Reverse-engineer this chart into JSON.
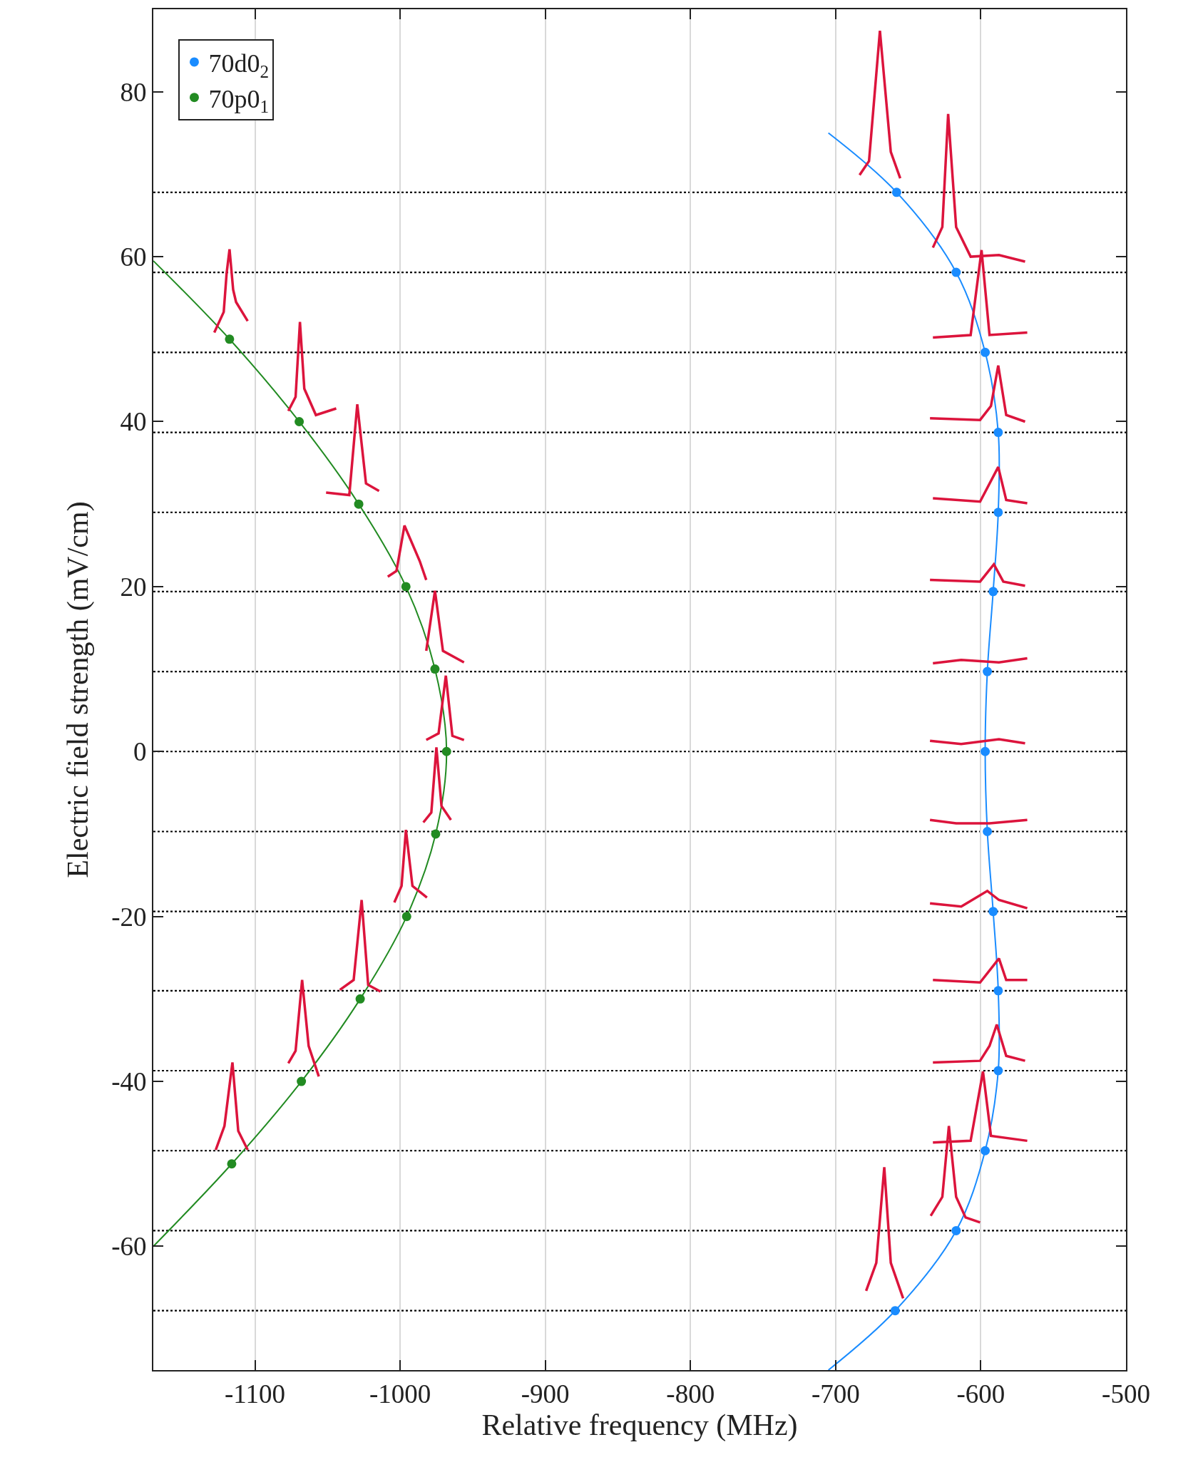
{
  "chart_data": {
    "type": "scatter",
    "xlabel": "Relative frequency (MHz)",
    "ylabel": "Electric field strength (mV/cm)",
    "xlim": [
      -1170,
      -500
    ],
    "xticks": [
      -1100,
      -1000,
      -900,
      -800,
      -700,
      -600,
      -500
    ],
    "ylim": [
      -75,
      90
    ],
    "yticks": [
      -60,
      -40,
      -20,
      0,
      20,
      40,
      60,
      80
    ],
    "grid": "x",
    "legend": "top left",
    "ref_lines": [
      {
        "axis": "y",
        "value": 67.8,
        "color": "#000000",
        "line_style": "dotted"
      },
      {
        "axis": "y",
        "value": 58.1,
        "color": "#000000",
        "line_style": "dotted"
      },
      {
        "axis": "y",
        "value": 48.4,
        "color": "#000000",
        "line_style": "dotted"
      },
      {
        "axis": "y",
        "value": 38.7,
        "color": "#000000",
        "line_style": "dotted"
      },
      {
        "axis": "y",
        "value": 29.0,
        "color": "#000000",
        "line_style": "dotted"
      },
      {
        "axis": "y",
        "value": 19.4,
        "color": "#000000",
        "line_style": "dotted"
      },
      {
        "axis": "y",
        "value": 9.7,
        "color": "#000000",
        "line_style": "dotted"
      },
      {
        "axis": "y",
        "value": 0,
        "color": "#000000",
        "line_style": "dotted"
      },
      {
        "axis": "y",
        "value": -9.7,
        "color": "#000000",
        "line_style": "dotted"
      },
      {
        "axis": "y",
        "value": -19.4,
        "color": "#000000",
        "line_style": "dotted"
      },
      {
        "axis": "y",
        "value": -29.0,
        "color": "#000000",
        "line_style": "dotted"
      },
      {
        "axis": "y",
        "value": -38.7,
        "color": "#000000",
        "line_style": "dotted"
      },
      {
        "axis": "y",
        "value": -48.4,
        "color": "#000000",
        "line_style": "dotted"
      },
      {
        "axis": "y",
        "value": -58.1,
        "color": "#000000",
        "line_style": "dotted"
      },
      {
        "axis": "y",
        "value": -67.8,
        "color": "#000000",
        "line_style": "dotted"
      }
    ],
    "series": [
      {
        "type": "line",
        "marker": "none",
        "color": "#1a8cff",
        "x": [
          -705,
          -658,
          -617,
          -597,
          -588,
          -588,
          -591.5,
          -595.5,
          -597,
          -595.5,
          -591.5,
          -588,
          -588,
          -597,
          -617,
          -659,
          -705
        ],
        "values": [
          75,
          67.8,
          58.1,
          48.4,
          38.7,
          29.0,
          19.4,
          9.7,
          0,
          -9.7,
          -19.4,
          -29.0,
          -38.7,
          -48.4,
          -58.1,
          -67.8,
          -75
        ]
      },
      {
        "type": "line",
        "marker": "none",
        "color": "#228b22",
        "x": [
          -1170,
          -1117.5,
          -1069.5,
          -1028.5,
          -996,
          -976,
          -968,
          -975.5,
          -995.5,
          -1027.5,
          -1068,
          -1116,
          -1170
        ],
        "values": [
          59.5,
          50,
          40,
          30,
          20,
          10,
          0,
          -10,
          -20,
          -30,
          -40,
          -50,
          -60
        ]
      },
      {
        "type": "scatter",
        "marker": "circle",
        "name": "70d0$_{2}$",
        "color": "#1a8cff",
        "x": [
          -658,
          -617,
          -597,
          -588,
          -588,
          -591.5,
          -595.5,
          -597,
          -595.5,
          -591.5,
          -588,
          -588,
          -597,
          -617,
          -659
        ],
        "values": [
          67.8,
          58.1,
          48.4,
          38.7,
          29.0,
          19.4,
          9.7,
          0,
          -9.7,
          -19.4,
          -29.0,
          -38.7,
          -48.4,
          -58.1,
          -67.8
        ]
      },
      {
        "type": "scatter",
        "marker": "circle",
        "name": "70p0$_{1}$",
        "color": "#228b22",
        "x": [
          -1117.5,
          -1069.5,
          -1028.5,
          -996,
          -976,
          -968,
          -975.5,
          -995.5,
          -1027.5,
          -1068,
          -1116
        ],
        "values": [
          50,
          40,
          30,
          20,
          10,
          0,
          -10,
          -20,
          -30,
          -40,
          -50
        ]
      },
      {
        "type": "line",
        "marker": "none",
        "color": "#dc143c",
        "x": [
          -1128,
          -1121.5,
          -1119.5,
          -1117.5,
          -1115,
          -1113,
          -1105
        ],
        "values": [
          50.8,
          53.3,
          58,
          60.9,
          56,
          54.5,
          52.2
        ]
      },
      {
        "type": "line",
        "marker": "none",
        "color": "#dc143c",
        "x": [
          -1077,
          -1072,
          -1069,
          -1066,
          -1058,
          -1044
        ],
        "values": [
          41.3,
          43,
          52.1,
          44,
          40.8,
          41.6
        ]
      },
      {
        "type": "line",
        "marker": "none",
        "color": "#dc143c",
        "x": [
          -1051,
          -1035,
          -1029.5,
          -1023.5,
          -1014.5
        ],
        "values": [
          31.4,
          31.1,
          42.1,
          32.5,
          31.6
        ]
      },
      {
        "type": "line",
        "marker": "none",
        "color": "#dc143c",
        "x": [
          -1008.5,
          -1002.5,
          -997,
          -986.5,
          -982
        ],
        "values": [
          21.2,
          21.9,
          27.4,
          23.1,
          20.8
        ]
      },
      {
        "type": "line",
        "marker": "none",
        "color": "#dc143c",
        "x": [
          -982,
          -976,
          -970.5,
          -956
        ],
        "values": [
          12.2,
          19.5,
          12.2,
          10.8
        ]
      },
      {
        "type": "line",
        "marker": "none",
        "color": "#dc143c",
        "x": [
          -982,
          -973.5,
          -968.5,
          -964,
          -956
        ],
        "values": [
          1.4,
          2.2,
          9.2,
          1.9,
          1.4
        ]
      },
      {
        "type": "line",
        "marker": "none",
        "color": "#dc143c",
        "x": [
          -984,
          -978.5,
          -975,
          -971.5,
          -965
        ],
        "values": [
          -8.6,
          -7.4,
          0.5,
          -6.6,
          -8.3
        ]
      },
      {
        "type": "line",
        "marker": "none",
        "color": "#dc143c",
        "x": [
          -1004,
          -999,
          -996,
          -991.5,
          -981.5
        ],
        "values": [
          -18.3,
          -16.3,
          -9.5,
          -16.3,
          -17.7
        ]
      },
      {
        "type": "line",
        "marker": "none",
        "color": "#dc143c",
        "x": [
          -1041.5,
          -1032,
          -1026.5,
          -1022,
          -1013.5
        ],
        "values": [
          -28.9,
          -27.7,
          -18,
          -28.3,
          -29.1
        ]
      },
      {
        "type": "line",
        "marker": "none",
        "color": "#dc143c",
        "x": [
          -1077,
          -1072,
          -1067.5,
          -1063,
          -1056
        ],
        "values": [
          -37.8,
          -36.3,
          -27.7,
          -35.7,
          -39.4
        ]
      },
      {
        "type": "line",
        "marker": "none",
        "color": "#dc143c",
        "x": [
          -1127,
          -1121,
          -1115.5,
          -1111.5,
          -1105
        ],
        "values": [
          -48.3,
          -45.4,
          -37.7,
          -46,
          -48.3
        ]
      },
      {
        "type": "line",
        "marker": "none",
        "color": "#dc143c",
        "x": [
          -683.5,
          -677,
          -669.5,
          -662,
          -655.5
        ],
        "values": [
          69.9,
          71.6,
          87.4,
          72.7,
          69.5
        ]
      },
      {
        "type": "line",
        "marker": "none",
        "color": "#dc143c",
        "x": [
          -633,
          -626.5,
          -622.5,
          -617,
          -607,
          -587.5,
          -569.5
        ],
        "values": [
          61.1,
          63.6,
          77.3,
          63.6,
          60,
          60.2,
          59.4
        ]
      },
      {
        "type": "line",
        "marker": "none",
        "color": "#dc143c",
        "x": [
          -633,
          -607,
          -599.5,
          -594,
          -568
        ],
        "values": [
          50.2,
          50.5,
          60.8,
          50.5,
          50.8
        ]
      },
      {
        "type": "line",
        "marker": "none",
        "color": "#dc143c",
        "x": [
          -635,
          -600.5,
          -593,
          -588,
          -582.5,
          -569.5
        ],
        "values": [
          40.4,
          40.2,
          41.9,
          46.8,
          40.8,
          40
        ]
      },
      {
        "type": "line",
        "marker": "none",
        "color": "#dc143c",
        "x": [
          -633,
          -600.5,
          -588,
          -582.5,
          -568
        ],
        "values": [
          30.7,
          30.3,
          34.5,
          30.5,
          30.1
        ]
      },
      {
        "type": "line",
        "marker": "none",
        "color": "#dc143c",
        "x": [
          -635,
          -600.5,
          -591,
          -584.5,
          -569.5
        ],
        "values": [
          20.8,
          20.6,
          22.7,
          20.6,
          20.1
        ]
      },
      {
        "type": "line",
        "marker": "none",
        "color": "#dc143c",
        "x": [
          -633,
          -613.5,
          -587.5,
          -568
        ],
        "values": [
          10.7,
          11.1,
          10.8,
          11.3
        ]
      },
      {
        "type": "line",
        "marker": "none",
        "color": "#dc143c",
        "x": [
          -635,
          -613.5,
          -587.5,
          -569.5
        ],
        "values": [
          1.3,
          0.9,
          1.5,
          1.0
        ]
      },
      {
        "type": "line",
        "marker": "none",
        "color": "#dc143c",
        "x": [
          -635,
          -617,
          -594,
          -568
        ],
        "values": [
          -8.3,
          -8.7,
          -8.7,
          -8.3
        ]
      },
      {
        "type": "line",
        "marker": "none",
        "color": "#dc143c",
        "x": [
          -635,
          -613.5,
          -595.5,
          -587.5,
          -568
        ],
        "values": [
          -18.4,
          -18.8,
          -16.9,
          -18,
          -19
        ]
      },
      {
        "type": "line",
        "marker": "none",
        "color": "#dc143c",
        "x": [
          -633,
          -600.5,
          -587.5,
          -582.5,
          -568
        ],
        "values": [
          -27.7,
          -28,
          -25.1,
          -27.7,
          -27.7
        ]
      },
      {
        "type": "line",
        "marker": "none",
        "color": "#dc143c",
        "x": [
          -633,
          -600.5,
          -594,
          -589,
          -582.5,
          -569.5
        ],
        "values": [
          -37.7,
          -37.5,
          -35.7,
          -33.1,
          -36.9,
          -37.5
        ]
      },
      {
        "type": "line",
        "marker": "none",
        "color": "#dc143c",
        "x": [
          -633,
          -607,
          -598.5,
          -593,
          -568
        ],
        "values": [
          -47.4,
          -47.2,
          -38.8,
          -46.6,
          -47.2
        ]
      },
      {
        "type": "line",
        "marker": "none",
        "color": "#dc143c",
        "x": [
          -634.5,
          -626.5,
          -622,
          -617,
          -610.5,
          -600.5
        ],
        "values": [
          -56.3,
          -54,
          -45.4,
          -54,
          -56.5,
          -57.1
        ]
      },
      {
        "type": "line",
        "marker": "none",
        "color": "#dc143c",
        "x": [
          -679,
          -672,
          -666.5,
          -662,
          -653.5
        ],
        "values": [
          -65.4,
          -62,
          -50.4,
          -62,
          -66.3
        ]
      }
    ]
  }
}
